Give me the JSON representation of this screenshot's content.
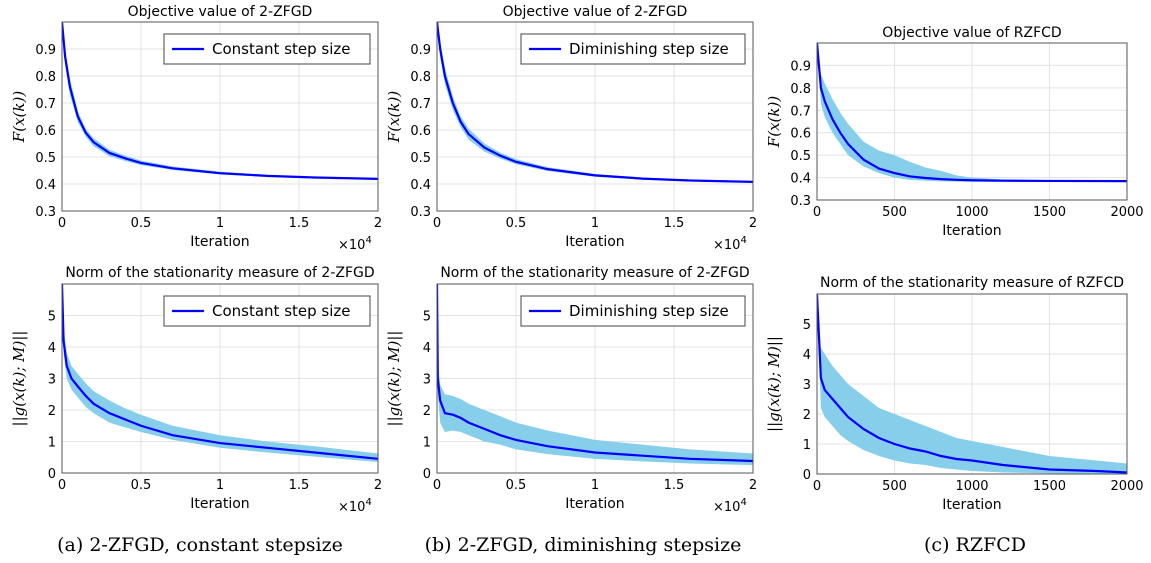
{
  "chart_data": [
    {
      "type": "line",
      "title": "Objective value of 2-ZFGD",
      "xlabel": "Iteration",
      "ylabel": "F(x(k))",
      "x_multiplier": "×10",
      "x_multiplier_exp": "4",
      "xlim": [
        0,
        20000
      ],
      "ylim": [
        0.3,
        1.0
      ],
      "xticks": [
        0,
        5000,
        10000,
        15000,
        20000
      ],
      "xtick_labels": [
        "0",
        "0.5",
        "1",
        "1.5",
        "2"
      ],
      "yticks": [
        0.3,
        0.4,
        0.5,
        0.6,
        0.7,
        0.8,
        0.9
      ],
      "ytick_labels": [
        "0.3",
        "0.4",
        "0.5",
        "0.6",
        "0.7",
        "0.8",
        "0.9"
      ],
      "grid": true,
      "legend": "top-right",
      "series": [
        {
          "name": "Constant step size",
          "color": "#0000ff",
          "band_color": "#87ceeb",
          "x": [
            0,
            200,
            500,
            1000,
            1500,
            2000,
            3000,
            4000,
            5000,
            7000,
            10000,
            13000,
            16000,
            20000
          ],
          "mean": [
            1.0,
            0.87,
            0.76,
            0.65,
            0.59,
            0.555,
            0.515,
            0.495,
            0.478,
            0.458,
            0.44,
            0.43,
            0.424,
            0.419
          ],
          "lower": [
            1.0,
            0.84,
            0.73,
            0.63,
            0.575,
            0.54,
            0.503,
            0.485,
            0.47,
            0.452,
            0.435,
            0.426,
            0.421,
            0.416
          ],
          "upper": [
            1.0,
            0.9,
            0.79,
            0.67,
            0.605,
            0.57,
            0.527,
            0.505,
            0.487,
            0.465,
            0.446,
            0.434,
            0.427,
            0.422
          ]
        }
      ]
    },
    {
      "type": "line",
      "title": "Objective value of 2-ZFGD",
      "xlabel": "Iteration",
      "ylabel": "F(x(k))",
      "x_multiplier": "×10",
      "x_multiplier_exp": "4",
      "xlim": [
        0,
        20000
      ],
      "ylim": [
        0.3,
        1.0
      ],
      "xticks": [
        0,
        5000,
        10000,
        15000,
        20000
      ],
      "xtick_labels": [
        "0",
        "0.5",
        "1",
        "1.5",
        "2"
      ],
      "yticks": [
        0.3,
        0.4,
        0.5,
        0.6,
        0.7,
        0.8,
        0.9
      ],
      "ytick_labels": [
        "0.3",
        "0.4",
        "0.5",
        "0.6",
        "0.7",
        "0.8",
        "0.9"
      ],
      "grid": true,
      "legend": "top-right",
      "series": [
        {
          "name": "Diminishing step size",
          "color": "#0000ff",
          "band_color": "#87ceeb",
          "x": [
            0,
            200,
            500,
            1000,
            1500,
            2000,
            3000,
            4000,
            5000,
            7000,
            10000,
            13000,
            16000,
            20000
          ],
          "mean": [
            1.0,
            0.9,
            0.8,
            0.7,
            0.63,
            0.585,
            0.535,
            0.505,
            0.482,
            0.455,
            0.432,
            0.42,
            0.413,
            0.408
          ],
          "lower": [
            1.0,
            0.87,
            0.77,
            0.675,
            0.61,
            0.565,
            0.52,
            0.494,
            0.473,
            0.448,
            0.427,
            0.416,
            0.41,
            0.405
          ],
          "upper": [
            1.0,
            0.93,
            0.83,
            0.725,
            0.65,
            0.605,
            0.55,
            0.516,
            0.492,
            0.462,
            0.437,
            0.424,
            0.416,
            0.411
          ]
        }
      ]
    },
    {
      "type": "line",
      "title": "Objective value of RZFCD",
      "xlabel": "Iteration",
      "ylabel": "F(x(k))",
      "xlim": [
        0,
        2000
      ],
      "ylim": [
        0.3,
        1.0
      ],
      "xticks": [
        0,
        500,
        1000,
        1500,
        2000
      ],
      "xtick_labels": [
        "0",
        "500",
        "1000",
        "1500",
        "2000"
      ],
      "yticks": [
        0.3,
        0.4,
        0.5,
        0.6,
        0.7,
        0.8,
        0.9
      ],
      "ytick_labels": [
        "0.3",
        "0.4",
        "0.5",
        "0.6",
        "0.7",
        "0.8",
        "0.9"
      ],
      "grid": true,
      "series": [
        {
          "color": "#0000ff",
          "band_color": "#87ceeb",
          "x": [
            0,
            25,
            50,
            100,
            150,
            200,
            300,
            400,
            500,
            600,
            700,
            800,
            900,
            1000,
            1200,
            1500,
            2000
          ],
          "mean": [
            1.0,
            0.8,
            0.74,
            0.66,
            0.6,
            0.55,
            0.48,
            0.44,
            0.42,
            0.405,
            0.398,
            0.393,
            0.39,
            0.388,
            0.386,
            0.385,
            0.384
          ],
          "lower": [
            1.0,
            0.73,
            0.67,
            0.6,
            0.55,
            0.5,
            0.45,
            0.42,
            0.4,
            0.39,
            0.386,
            0.383,
            0.382,
            0.381,
            0.381,
            0.381,
            0.381
          ],
          "upper": [
            1.0,
            0.86,
            0.82,
            0.75,
            0.69,
            0.64,
            0.56,
            0.52,
            0.5,
            0.47,
            0.445,
            0.43,
            0.41,
            0.4,
            0.392,
            0.388,
            0.386
          ]
        }
      ]
    },
    {
      "type": "line",
      "title": "Norm of the stationarity measure of 2-ZFGD",
      "xlabel": "Iteration",
      "ylabel": "||g(x(k); M)||",
      "x_multiplier": "×10",
      "x_multiplier_exp": "4",
      "xlim": [
        0,
        20000
      ],
      "ylim": [
        0,
        6
      ],
      "xticks": [
        0,
        5000,
        10000,
        15000,
        20000
      ],
      "xtick_labels": [
        "0",
        "0.5",
        "1",
        "1.5",
        "2"
      ],
      "yticks": [
        0,
        1,
        2,
        3,
        4,
        5
      ],
      "ytick_labels": [
        "0",
        "1",
        "2",
        "3",
        "4",
        "5"
      ],
      "grid": true,
      "legend": "top-right",
      "series": [
        {
          "name": "Constant step size",
          "color": "#0000ff",
          "band_color": "#87ceeb",
          "x": [
            0,
            100,
            300,
            600,
            1000,
            1500,
            2000,
            3000,
            4000,
            5000,
            7000,
            10000,
            13000,
            16000,
            20000
          ],
          "mean": [
            6.0,
            4.2,
            3.4,
            3.0,
            2.75,
            2.45,
            2.2,
            1.9,
            1.7,
            1.5,
            1.2,
            0.95,
            0.8,
            0.65,
            0.45
          ],
          "lower": [
            6.0,
            3.8,
            3.0,
            2.65,
            2.4,
            2.1,
            1.9,
            1.6,
            1.45,
            1.3,
            1.05,
            0.8,
            0.65,
            0.52,
            0.35
          ],
          "upper": [
            6.0,
            4.6,
            3.8,
            3.4,
            3.15,
            2.85,
            2.6,
            2.3,
            2.05,
            1.85,
            1.5,
            1.2,
            1.0,
            0.85,
            0.62
          ]
        }
      ]
    },
    {
      "type": "line",
      "title": "Norm of the stationarity measure of 2-ZFGD",
      "xlabel": "Iteration",
      "ylabel": "||g(x(k); M)||",
      "x_multiplier": "×10",
      "x_multiplier_exp": "4",
      "xlim": [
        0,
        20000
      ],
      "ylim": [
        0,
        6
      ],
      "xticks": [
        0,
        5000,
        10000,
        15000,
        20000
      ],
      "xtick_labels": [
        "0",
        "0.5",
        "1",
        "1.5",
        "2"
      ],
      "yticks": [
        0,
        1,
        2,
        3,
        4,
        5
      ],
      "ytick_labels": [
        "0",
        "1",
        "2",
        "3",
        "4",
        "5"
      ],
      "grid": true,
      "legend": "top-right",
      "series": [
        {
          "name": "Diminishing step size",
          "color": "#0000ff",
          "band_color": "#87ceeb",
          "x": [
            0,
            50,
            200,
            500,
            1000,
            1500,
            2000,
            3000,
            4000,
            5000,
            7000,
            10000,
            13000,
            16000,
            20000
          ],
          "mean": [
            6.0,
            3.0,
            2.3,
            1.9,
            1.85,
            1.75,
            1.6,
            1.4,
            1.2,
            1.05,
            0.85,
            0.65,
            0.55,
            0.45,
            0.38
          ],
          "lower": [
            6.0,
            2.5,
            1.6,
            1.3,
            1.35,
            1.3,
            1.2,
            1.0,
            0.9,
            0.75,
            0.6,
            0.45,
            0.37,
            0.3,
            0.25
          ],
          "upper": [
            6.0,
            3.5,
            2.8,
            2.5,
            2.45,
            2.35,
            2.2,
            2.0,
            1.8,
            1.6,
            1.35,
            1.05,
            0.9,
            0.75,
            0.62
          ]
        }
      ]
    },
    {
      "type": "line",
      "title": "Norm of the stationarity measure of RZFCD",
      "xlabel": "Iteration",
      "ylabel": "||g(x(k); M)||",
      "xlim": [
        0,
        2000
      ],
      "ylim": [
        0,
        6
      ],
      "xticks": [
        0,
        500,
        1000,
        1500,
        2000
      ],
      "xtick_labels": [
        "0",
        "500",
        "1000",
        "1500",
        "2000"
      ],
      "yticks": [
        0,
        1,
        2,
        3,
        4,
        5
      ],
      "ytick_labels": [
        "0",
        "1",
        "2",
        "3",
        "4",
        "5"
      ],
      "grid": true,
      "series": [
        {
          "color": "#0000ff",
          "band_color": "#87ceeb",
          "x": [
            0,
            25,
            50,
            100,
            150,
            200,
            300,
            400,
            500,
            600,
            700,
            800,
            900,
            1000,
            1200,
            1500,
            1800,
            2000
          ],
          "mean": [
            6.0,
            3.2,
            2.8,
            2.5,
            2.2,
            1.9,
            1.5,
            1.2,
            1.0,
            0.85,
            0.75,
            0.6,
            0.5,
            0.45,
            0.3,
            0.15,
            0.1,
            0.05
          ],
          "lower": [
            6.0,
            2.2,
            1.9,
            1.6,
            1.3,
            1.1,
            0.8,
            0.6,
            0.45,
            0.35,
            0.3,
            0.2,
            0.15,
            0.1,
            0.05,
            0.02,
            0.0,
            0.0
          ],
          "upper": [
            6.0,
            4.2,
            4.0,
            3.6,
            3.3,
            3.0,
            2.6,
            2.2,
            2.0,
            1.8,
            1.6,
            1.4,
            1.2,
            1.1,
            0.9,
            0.6,
            0.45,
            0.35
          ]
        }
      ]
    }
  ],
  "captions": [
    "(a) 2-ZFGD, constant stepsize",
    "(b) 2-ZFGD, diminishing stepsize",
    "(c) RZFCD"
  ]
}
